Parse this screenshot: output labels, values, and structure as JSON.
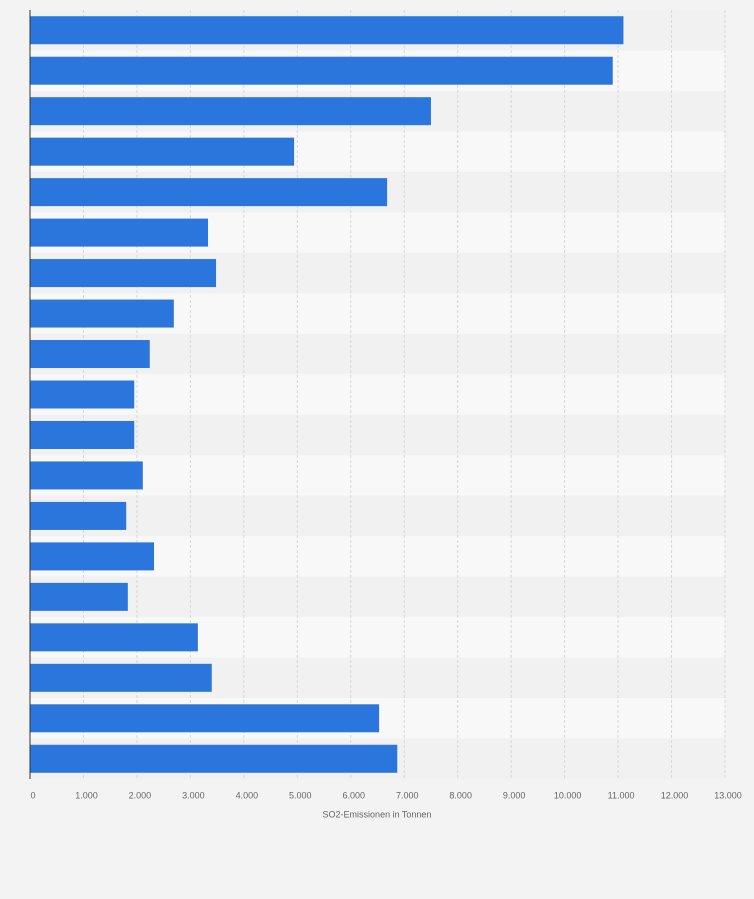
{
  "chart_data": {
    "type": "bar",
    "orientation": "horizontal",
    "x_label": "SO2-Emissionen in Tonnen",
    "categories": [
      null,
      null,
      null,
      null,
      null,
      null,
      null,
      null,
      null,
      null,
      null,
      null,
      null,
      null,
      null,
      null,
      null,
      null,
      null
    ],
    "values": [
      11100,
      10900,
      7500,
      4940,
      6680,
      3330,
      3480,
      2690,
      2240,
      1950,
      1950,
      2110,
      1800,
      2320,
      1830,
      3140,
      3400,
      6530,
      6870
    ],
    "color": "#2a76dd",
    "xlim": [
      0,
      13000
    ],
    "xticks": [
      0,
      {
        "value": 1000,
        "label": "1.000"
      },
      {
        "value": 2000,
        "label": "2.000"
      },
      {
        "value": 3000,
        "label": "3.000"
      },
      {
        "value": 4000,
        "label": "4.000"
      },
      {
        "value": 5000,
        "label": "5.000"
      },
      {
        "value": 6000,
        "label": "6.000"
      },
      {
        "value": 7000,
        "label": "7.000"
      },
      {
        "value": 8000,
        "label": "8.000"
      },
      {
        "value": 9000,
        "label": "9.000"
      },
      {
        "value": 10000,
        "label": "10.000"
      },
      {
        "value": 11000,
        "label": "11.000"
      },
      {
        "value": 12000,
        "label": "12.000"
      },
      {
        "value": 13000,
        "label": "13.000"
      }
    ],
    "grid": true
  }
}
